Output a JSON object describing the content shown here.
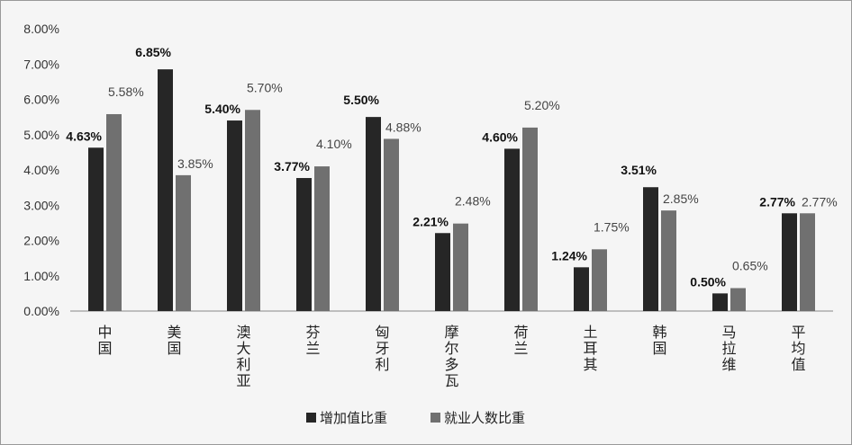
{
  "chart_data": {
    "type": "bar",
    "categories": [
      "中国",
      "美国",
      "澳大利亚",
      "芬兰",
      "匈牙利",
      "摩尔多瓦",
      "荷兰",
      "土耳其",
      "韩国",
      "马拉维",
      "平均值"
    ],
    "series": [
      {
        "name": "增加值比重",
        "values": [
          4.63,
          6.85,
          5.4,
          3.77,
          5.5,
          2.21,
          4.6,
          1.24,
          3.51,
          0.5,
          2.77
        ],
        "color": "#262626"
      },
      {
        "name": "就业人数比重",
        "values": [
          5.58,
          3.85,
          5.7,
          4.1,
          4.88,
          2.48,
          5.2,
          1.75,
          2.85,
          0.65,
          2.77
        ],
        "color": "#707070"
      }
    ],
    "data_labels": [
      [
        "4.63%",
        "6.85%",
        "5.40%",
        "3.77%",
        "5.50%",
        "2.21%",
        "4.60%",
        "1.24%",
        "3.51%",
        "0.50%",
        "2.77%"
      ],
      [
        "5.58%",
        "3.85%",
        "5.70%",
        "4.10%",
        "4.88%",
        "2.48%",
        "5.20%",
        "1.75%",
        "2.85%",
        "0.65%",
        "2.77%"
      ]
    ],
    "y_tick_labels": [
      "0.00%",
      "1.00%",
      "2.00%",
      "3.00%",
      "4.00%",
      "5.00%",
      "6.00%",
      "7.00%",
      "8.00%"
    ],
    "ylim": [
      0,
      8
    ],
    "grid": false,
    "legend_position": "bottom",
    "title": "",
    "xlabel": "",
    "ylabel": ""
  }
}
